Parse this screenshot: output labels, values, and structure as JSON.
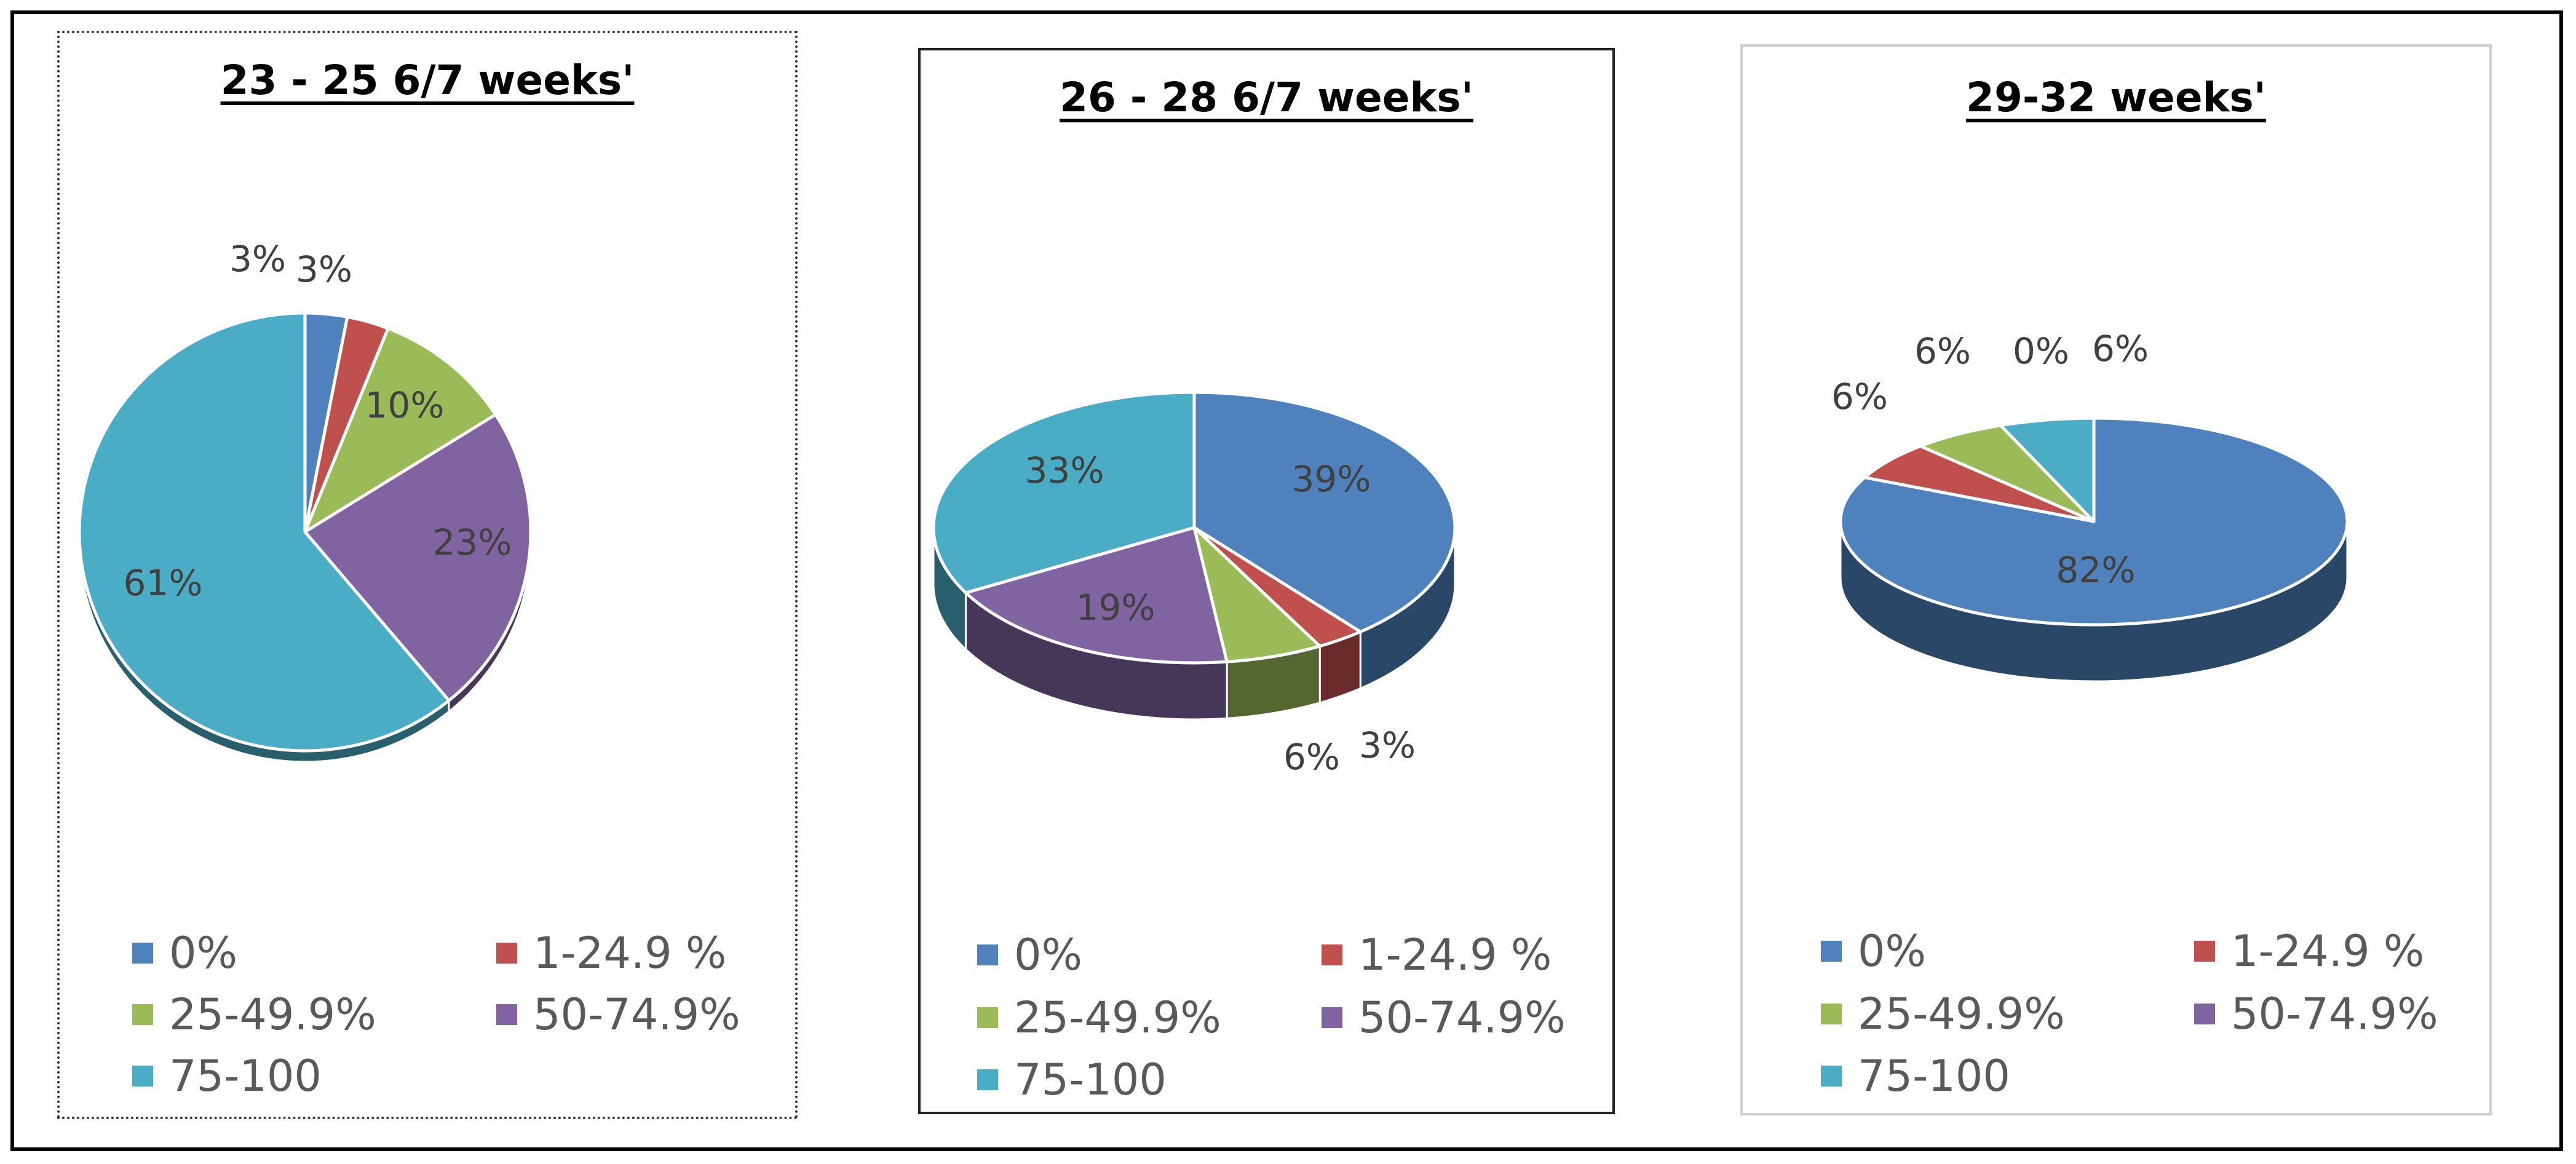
{
  "colors": {
    "s0": "#4f81bd",
    "s1": "#c0504d",
    "s2": "#9bbb59",
    "s3": "#8064a2",
    "s4": "#4bacc6"
  },
  "legend": [
    "0%",
    "1-24.9 %",
    "25-49.9%",
    "50-74.9%",
    "75-100"
  ],
  "chart_data": [
    {
      "type": "pie",
      "title": "23 - 25 6/7 weeks'",
      "categories": [
        "0%",
        "1-24.9 %",
        "25-49.9%",
        "50-74.9%",
        "75-100"
      ],
      "values": [
        3,
        3,
        10,
        23,
        61
      ],
      "labels": [
        "3%",
        "3%",
        "10%",
        "23%",
        "61%"
      ],
      "legend_position": "bottom"
    },
    {
      "type": "pie",
      "title": "26 - 28 6/7 weeks'",
      "categories": [
        "0%",
        "1-24.9 %",
        "25-49.9%",
        "50-74.9%",
        "75-100"
      ],
      "values": [
        39,
        3,
        6,
        19,
        33
      ],
      "labels": [
        "39%",
        "3%",
        "6%",
        "19%",
        "33%"
      ],
      "legend_position": "bottom"
    },
    {
      "type": "pie",
      "title": "29-32 weeks'",
      "categories": [
        "0%",
        "1-24.9 %",
        "25-49.9%",
        "50-74.9%",
        "75-100"
      ],
      "values": [
        82,
        6,
        6,
        0,
        6
      ],
      "labels": [
        "82%",
        "6%",
        "6%",
        "0%",
        "6%"
      ],
      "legend_position": "bottom"
    }
  ]
}
